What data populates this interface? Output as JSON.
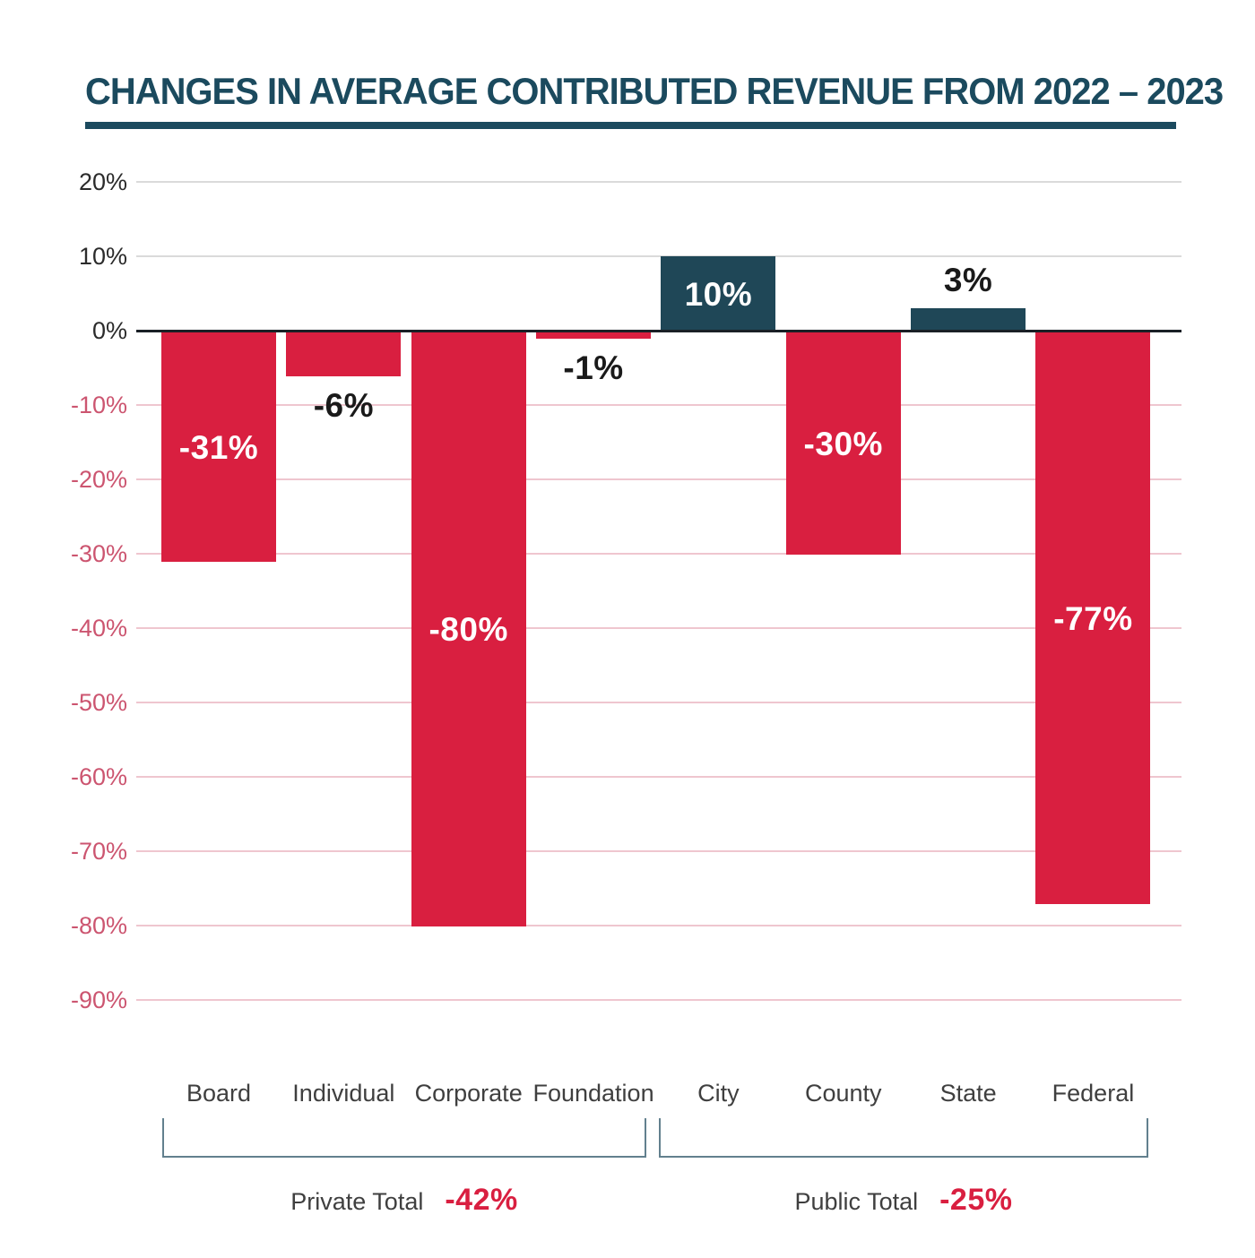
{
  "title": {
    "text": "CHANGES IN AVERAGE CONTRIBUTED REVENUE FROM 2022 – 2023"
  },
  "chart_data": {
    "type": "bar",
    "title": "CHANGES IN AVERAGE CONTRIBUTED REVENUE FROM 2022 – 2023",
    "categories": [
      "Board",
      "Individual",
      "Corporate",
      "Foundation",
      "City",
      "County",
      "State",
      "Federal"
    ],
    "values": [
      -31,
      -6,
      -80,
      -1,
      10,
      -30,
      3,
      -77
    ],
    "value_labels": [
      "-31%",
      "-6%",
      "-80%",
      "-1%",
      "10%",
      "-30%",
      "3%",
      "-77%"
    ],
    "value_label_positions": [
      "inside",
      "below",
      "inside",
      "below",
      "inside",
      "inside",
      "above",
      "inside"
    ],
    "xlabel": "",
    "ylabel": "",
    "ylim": [
      -90,
      20
    ],
    "grid": true,
    "legend_position": "none",
    "y_ticks": [
      20,
      10,
      0,
      -10,
      -20,
      -30,
      -40,
      -50,
      -60,
      -70,
      -80,
      -90
    ],
    "y_tick_labels": [
      "20%",
      "10%",
      "0%",
      "-10%",
      "-20%",
      "-30%",
      "-40%",
      "-50%",
      "-60%",
      "-70%",
      "-80%",
      "-90%"
    ],
    "groups": [
      {
        "label": "Private Total",
        "value_label": "-42%",
        "value": -42,
        "categories": [
          "Board",
          "Individual",
          "Corporate",
          "Foundation"
        ]
      },
      {
        "label": "Public Total",
        "value_label": "-25%",
        "value": -25,
        "categories": [
          "City",
          "County",
          "State",
          "Federal"
        ]
      }
    ]
  },
  "colors": {
    "bar_negative": "#d91f40",
    "bar_positive": "#1f4757",
    "title_teal": "#1b4a5e",
    "axis_zero": "#1a2026",
    "grid_positive": "#dadada",
    "grid_negative": "#efc6cf",
    "tick_positive_text": "#2b2b2b",
    "tick_negative_text": "#cc5570",
    "label_inside_text": "#ffffff",
    "label_outside_text": "#1a1a1a",
    "bracket": "#62808e",
    "total_value_red": "#d91f40"
  }
}
